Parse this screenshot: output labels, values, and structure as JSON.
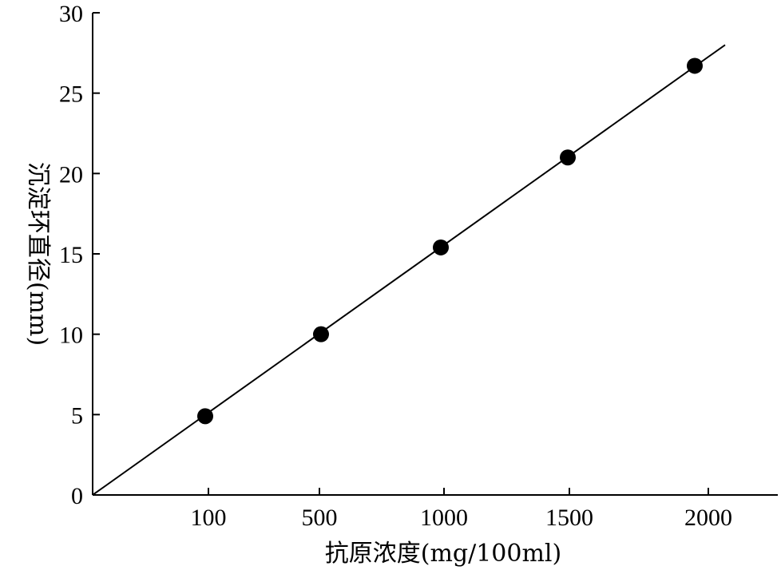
{
  "chart_data": {
    "type": "scatter",
    "title": "",
    "xlabel": "抗原浓度(mg/100ml)",
    "ylabel": "沉淀环直径(mm)",
    "x_ticks": [
      {
        "label": "100",
        "pos": 1
      },
      {
        "label": "500",
        "pos": 2
      },
      {
        "label": "1000",
        "pos": 3
      },
      {
        "label": "1500",
        "pos": 4
      },
      {
        "label": "2000",
        "pos": 5
      }
    ],
    "y_ticks": [
      0,
      5,
      10,
      15,
      20,
      25,
      30
    ],
    "y_tick_labels": [
      "0",
      "5",
      "10",
      "15",
      "20",
      "25",
      "30"
    ],
    "ylim": [
      0,
      30
    ],
    "series": [
      {
        "points": [
          {
            "x": 100,
            "y": 4.9
          },
          {
            "x": 500,
            "y": 10.0
          },
          {
            "x": 1000,
            "y": 15.4
          },
          {
            "x": 1500,
            "y": 21.0
          },
          {
            "x": 2000,
            "y": 26.7
          }
        ]
      }
    ],
    "fit_line": {
      "from": {
        "y": 0
      },
      "to": {
        "y": 28.0
      }
    },
    "grid": false,
    "colors": {
      "axis": "#000000",
      "marker": "#000000",
      "line": "#000000"
    }
  }
}
